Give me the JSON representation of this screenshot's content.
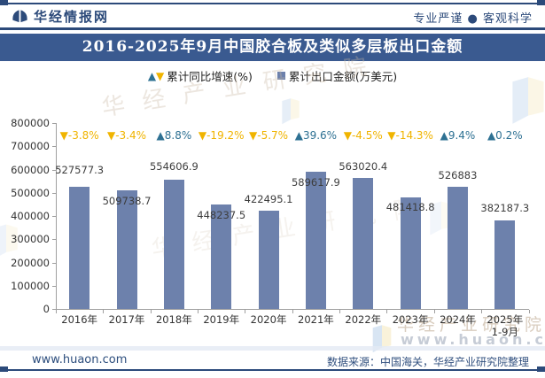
{
  "header": {
    "brand": "华经情报网",
    "slogan": "专业严谨 ● 客观科学"
  },
  "title": "2016-2025年9月中国胶合板及类似多层板出口金额",
  "legend": {
    "growth": "累计同比增速(%)",
    "amount": "累计出口金额(万美元)"
  },
  "chart_data": {
    "type": "bar",
    "title": "2016-2025年9月中国胶合板及类似多层板出口金额",
    "categories": [
      "2016年",
      "2017年",
      "2018年",
      "2019年",
      "2020年",
      "2021年",
      "2022年",
      "2023年",
      "2024年",
      "2025年\n1-9月"
    ],
    "series": [
      {
        "name": "累计出口金额(万美元)",
        "type": "bar",
        "values": [
          527577.3,
          509738.7,
          554606.9,
          448237.5,
          422495.1,
          589617.9,
          563020.4,
          481418.8,
          526883,
          382187.3
        ]
      },
      {
        "name": "累计同比增速(%)",
        "type": "marker",
        "values": [
          -3.8,
          -3.4,
          8.8,
          -19.2,
          -5.7,
          39.6,
          -4.5,
          -14.3,
          9.4,
          0.2
        ]
      }
    ],
    "xlabel": "",
    "ylabel": "",
    "ylim": [
      0,
      800000
    ],
    "ytick_step": 100000,
    "grid": false,
    "legend_position": "top"
  },
  "colors": {
    "bar": "#6d81ac",
    "up": "#2e7193",
    "down": "#f0b400",
    "banner": "#3a5a90",
    "navy": "#2c4a7a"
  },
  "watermarks": {
    "brand_text": "华经产业研究院",
    "site_text": "www.huaon.com"
  },
  "footer": {
    "site": "www.huaon.com",
    "source": "数据来源：中国海关，华经产业研究院整理"
  }
}
